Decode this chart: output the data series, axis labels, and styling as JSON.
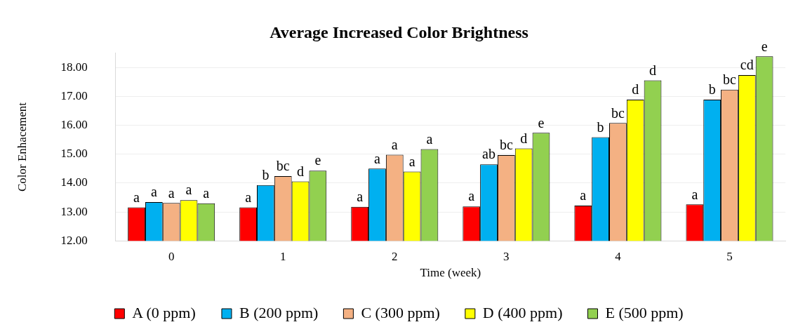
{
  "chart_data": {
    "type": "bar",
    "title": "Average Increased Color Brightness",
    "xlabel": "Time (week)",
    "ylabel": "Color Enhacement",
    "categories": [
      "0",
      "1",
      "2",
      "3",
      "4",
      "5"
    ],
    "ylim": [
      12,
      18.5
    ],
    "yticks": [
      {
        "value": 12,
        "label": "12.00"
      },
      {
        "value": 13,
        "label": "13.00"
      },
      {
        "value": 14,
        "label": "14.00"
      },
      {
        "value": 15,
        "label": "15.00"
      },
      {
        "value": 16,
        "label": "16.00"
      },
      {
        "value": 17,
        "label": "17.00"
      },
      {
        "value": 18,
        "label": "18.00"
      }
    ],
    "grid": "y",
    "legend": "bottom",
    "series": [
      {
        "name": "A (0 ppm)",
        "color": "#ff0000",
        "values": [
          13.16,
          13.16,
          13.18,
          13.19,
          13.22,
          13.26
        ],
        "value_labels": [
          "a",
          "a",
          "a",
          "a",
          "a",
          "a"
        ]
      },
      {
        "name": "B (200 ppm)",
        "color": "#00b0f0",
        "values": [
          13.34,
          13.93,
          14.5,
          14.65,
          15.59,
          16.89
        ],
        "value_labels": [
          "a",
          "b",
          "a",
          "ab",
          "b",
          "b"
        ]
      },
      {
        "name": "C (300 ppm)",
        "color": "#f4b183",
        "values": [
          13.31,
          14.24,
          14.98,
          14.97,
          16.08,
          17.24
        ],
        "value_labels": [
          "a",
          "bc",
          "a",
          "bc",
          "bc",
          "bc"
        ]
      },
      {
        "name": "D (400 ppm)",
        "color": "#ffff00",
        "values": [
          13.41,
          14.06,
          14.4,
          15.2,
          16.89,
          17.74
        ],
        "value_labels": [
          "a",
          "d",
          "a",
          "d",
          "d",
          "cd"
        ]
      },
      {
        "name": "E (500 ppm)",
        "color": "#92d050",
        "values": [
          13.3,
          14.43,
          15.18,
          15.74,
          17.56,
          18.39
        ],
        "value_labels": [
          "a",
          "e",
          "a",
          "e",
          "d",
          "e"
        ]
      }
    ]
  }
}
